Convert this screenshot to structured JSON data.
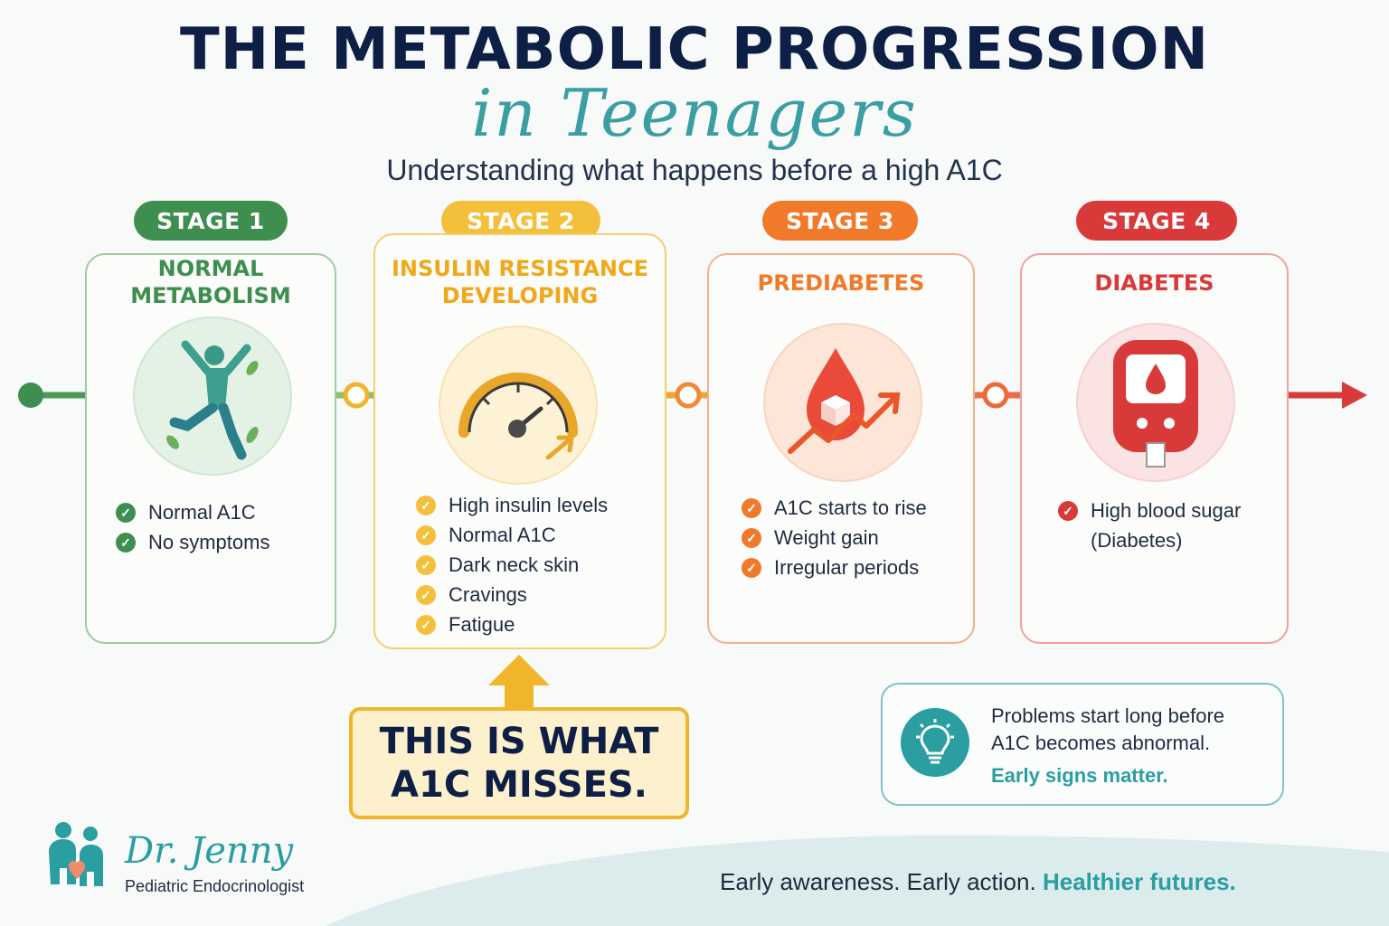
{
  "header": {
    "title": "THE METABOLIC PROGRESSION",
    "script_title": "in Teenagers",
    "subtitle": "Understanding what happens before a high A1C"
  },
  "stages": [
    {
      "pill": "STAGE 1",
      "title_line1": "NORMAL",
      "title_line2": "METABOLISM",
      "color": "#3e8f4f",
      "icon": "running-person-icon",
      "items": [
        "Normal A1C",
        "No symptoms"
      ]
    },
    {
      "pill": "STAGE 2",
      "title_line1": "INSULIN RESISTANCE",
      "title_line2": "DEVELOPING",
      "color": "#f0b52a",
      "icon": "gauge-icon",
      "items": [
        "High insulin levels",
        "Normal A1C",
        "Dark neck skin",
        "Cravings",
        "Fatigue"
      ]
    },
    {
      "pill": "STAGE 3",
      "title_line1": "PREDIABETES",
      "color": "#f07a2a",
      "icon": "blood-drop-sugar-icon",
      "items": [
        "A1C starts to rise",
        "Weight gain",
        "Irregular periods"
      ]
    },
    {
      "pill": "STAGE 4",
      "title_line1": "DIABETES",
      "color": "#d83a3a",
      "icon": "glucose-meter-icon",
      "items": [
        "High blood sugar",
        "(Diabetes)"
      ]
    }
  ],
  "callout": {
    "line1": "THIS IS WHAT",
    "line2": "A1C MISSES.",
    "color": "#f0b52a"
  },
  "info": {
    "line1": "Problems start long before",
    "line2": "A1C becomes abnormal.",
    "emphasis": "Early signs matter.",
    "icon": "lightbulb-icon",
    "color": "#2a9ea0"
  },
  "brand": {
    "name": "Dr. Jenny",
    "tagline": "Pediatric Endocrinologist",
    "icon": "family-icon"
  },
  "footer": {
    "part1": "Early awareness. Early action.",
    "part2": "Healthier futures."
  }
}
